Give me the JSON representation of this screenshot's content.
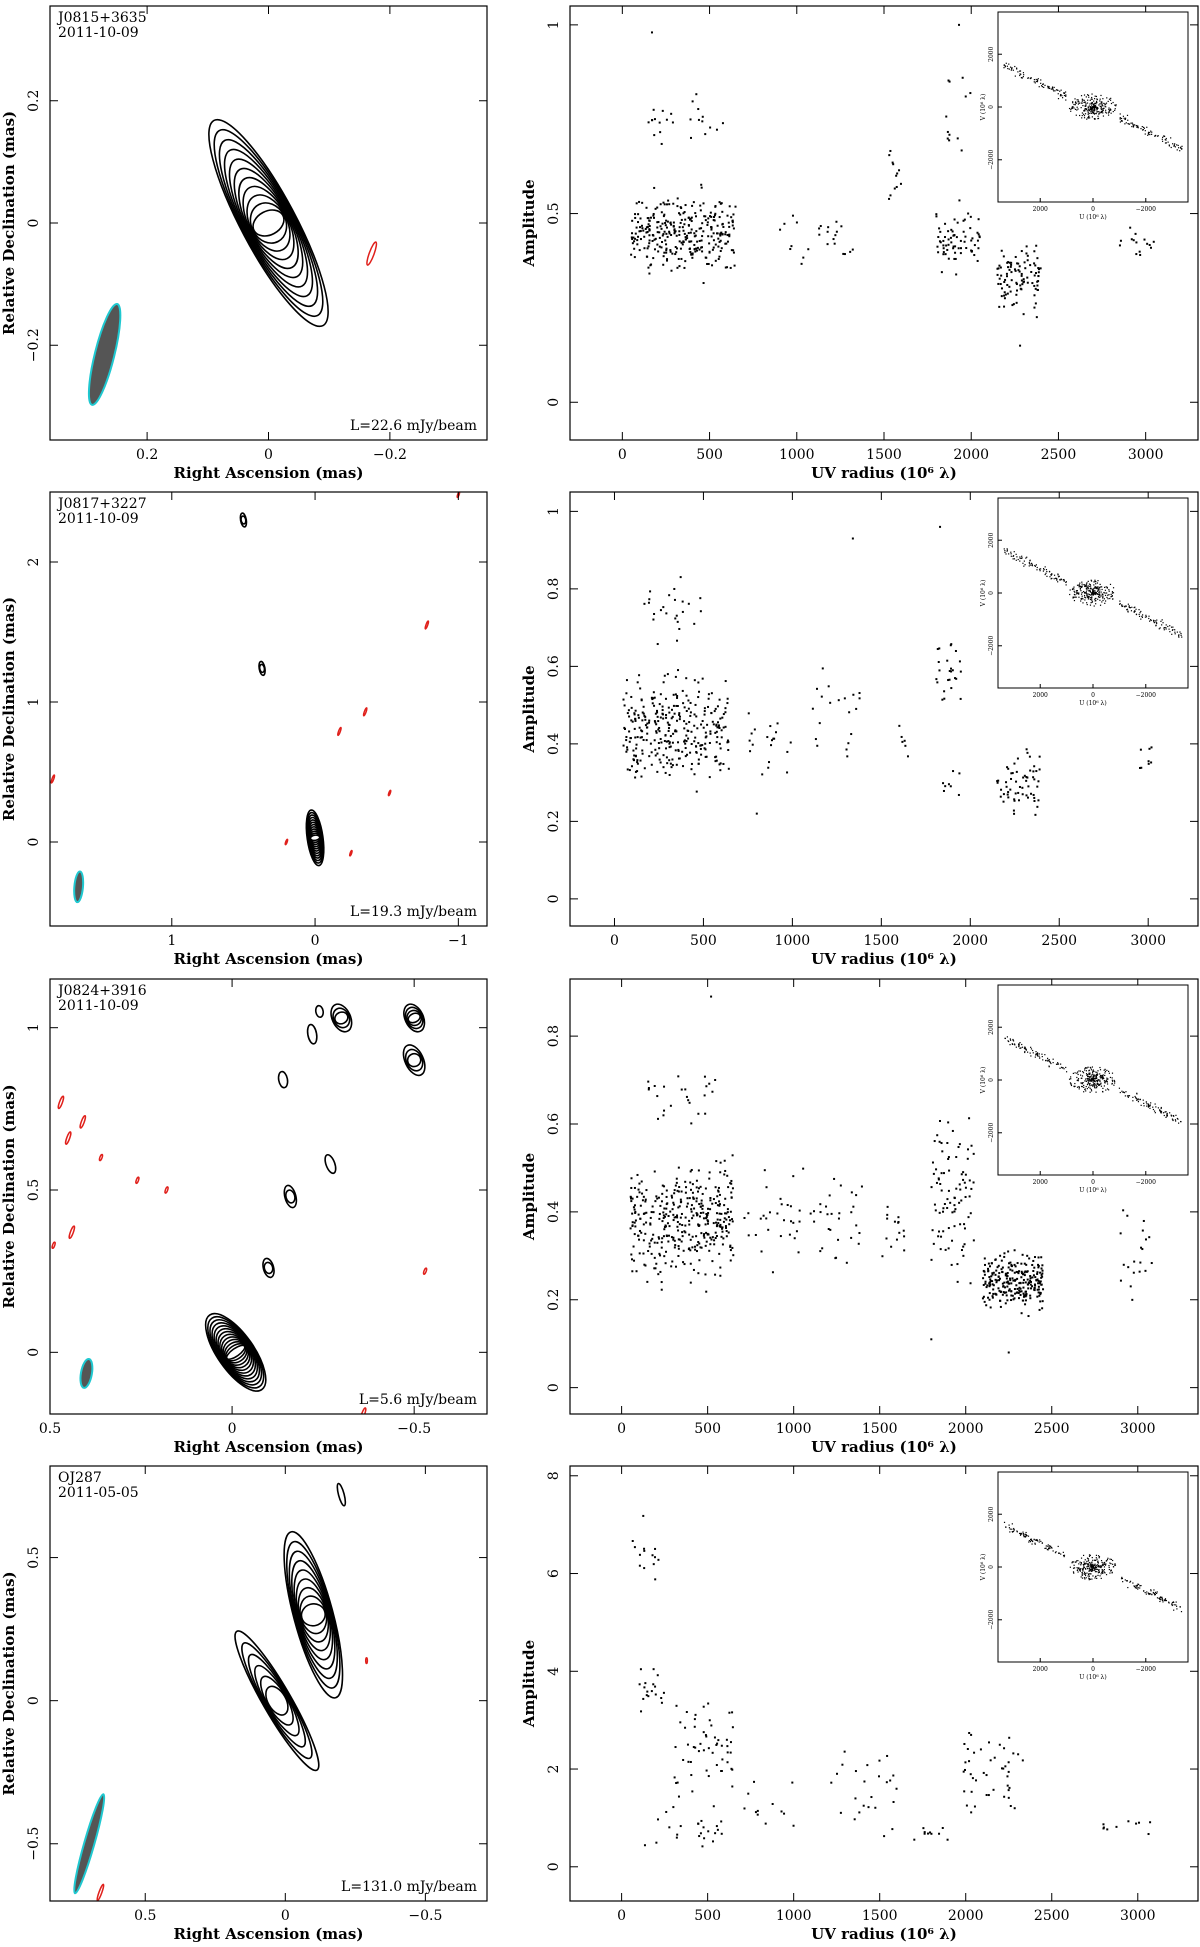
{
  "chart_data": [
    {
      "type": "contour",
      "source": "J0815+3635",
      "date": "2011-10-09",
      "xlabel": "Right Ascension  (mas)",
      "ylabel": "Relative Declination  (mas)",
      "xlim": [
        0.36,
        -0.36
      ],
      "ylim": [
        -0.355,
        0.355
      ],
      "xticks": [
        0.2,
        0,
        -0.2
      ],
      "xtick_labels": [
        "0.2",
        "0",
        "−0.2"
      ],
      "yticks": [
        -0.2,
        0,
        0.2
      ],
      "ytick_labels": [
        "−0.2",
        "0",
        "0.2"
      ],
      "level_label": "L=22.6 mJy/beam",
      "beam": {
        "x": 0.27,
        "y": -0.215,
        "major": 0.085,
        "minor": 0.016,
        "pa_deg": 14
      },
      "components": [
        {
          "x": 0.0,
          "y": 0.0,
          "major": 0.19,
          "minor": 0.045,
          "pa_deg": 152,
          "levels": 11
        }
      ],
      "negative_contours": [
        {
          "x": -0.17,
          "y": -0.05,
          "major": 0.02,
          "minor": 0.004,
          "pa_deg": 20
        }
      ]
    },
    {
      "type": "scatter",
      "xlabel": "UV radius  (10⁶ λ)",
      "ylabel": "Amplitude",
      "xlim": [
        -300,
        3300
      ],
      "ylim": [
        -0.1,
        1.05
      ],
      "xticks": [
        0,
        500,
        1000,
        1500,
        2000,
        2500,
        3000
      ],
      "yticks": [
        0,
        0.5,
        1
      ],
      "ytick_labels": [
        "0",
        "0.5",
        "1"
      ],
      "clusters": [
        {
          "x": [
            50,
            650
          ],
          "y": [
            0.3,
            0.6
          ],
          "n": 320
        },
        {
          "x": [
            150,
            600
          ],
          "y": [
            0.65,
            0.85
          ],
          "n": 25
        },
        {
          "x": [
            850,
            1350
          ],
          "y": [
            0.32,
            0.55
          ],
          "n": 25
        },
        {
          "x": [
            1500,
            1600
          ],
          "y": [
            0.45,
            0.72
          ],
          "n": 12
        },
        {
          "x": [
            1800,
            2050
          ],
          "y": [
            0.3,
            0.55
          ],
          "n": 70
        },
        {
          "x": [
            1850,
            2000
          ],
          "y": [
            0.6,
            0.95
          ],
          "n": 12
        },
        {
          "x": [
            2150,
            2400
          ],
          "y": [
            0.2,
            0.45
          ],
          "n": 100
        },
        {
          "x": [
            2850,
            3050
          ],
          "y": [
            0.35,
            0.48
          ],
          "n": 15
        }
      ],
      "outliers": [
        {
          "x": 170,
          "y": 0.98
        },
        {
          "x": 1930,
          "y": 1.0
        },
        {
          "x": 2280,
          "y": 0.15
        }
      ],
      "inset": {
        "xlabel": "U (10⁶ λ)",
        "ylabel": "V (10⁶ λ)",
        "xticks": [
          2000,
          0,
          -2000
        ],
        "yticks": [
          2000,
          0,
          -2000
        ]
      }
    },
    {
      "type": "contour",
      "source": "J0817+3227",
      "date": "2011-10-09",
      "xlabel": "Right Ascension  (mas)",
      "ylabel": "Relative Declination  (mas)",
      "xlim": [
        1.85,
        -1.2
      ],
      "ylim": [
        -0.6,
        2.5
      ],
      "xticks": [
        1,
        0,
        -1
      ],
      "xtick_labels": [
        "1",
        "0",
        "−1"
      ],
      "yticks": [
        0,
        1,
        2
      ],
      "ytick_labels": [
        "0",
        "1",
        "2"
      ],
      "level_label": "L=19.3 mJy/beam",
      "beam": {
        "x": 1.65,
        "y": -0.32,
        "major": 0.11,
        "minor": 0.03,
        "pa_deg": 5
      },
      "components": [
        {
          "x": 0.0,
          "y": 0.03,
          "major": 0.2,
          "minor": 0.055,
          "pa_deg": 172,
          "levels": 12
        },
        {
          "x": 0.5,
          "y": 2.3,
          "major": 0.05,
          "minor": 0.02,
          "pa_deg": 170,
          "levels": 2
        },
        {
          "x": 0.37,
          "y": 1.24,
          "major": 0.05,
          "minor": 0.02,
          "pa_deg": 170,
          "levels": 2
        }
      ],
      "negative_contours": [
        {
          "x": -0.35,
          "y": 0.93,
          "major": 0.03,
          "minor": 0.006,
          "pa_deg": 20
        },
        {
          "x": -0.17,
          "y": 0.79,
          "major": 0.03,
          "minor": 0.006,
          "pa_deg": 20
        },
        {
          "x": -0.78,
          "y": 1.55,
          "major": 0.03,
          "minor": 0.006,
          "pa_deg": 20
        },
        {
          "x": -0.52,
          "y": 0.35,
          "major": 0.02,
          "minor": 0.005,
          "pa_deg": 20
        },
        {
          "x": -0.25,
          "y": -0.08,
          "major": 0.02,
          "minor": 0.005,
          "pa_deg": 20
        },
        {
          "x": 0.2,
          "y": 0.0,
          "major": 0.02,
          "minor": 0.005,
          "pa_deg": 20
        },
        {
          "x": 1.83,
          "y": 0.45,
          "major": 0.03,
          "minor": 0.006,
          "pa_deg": 20
        },
        {
          "x": -1.0,
          "y": 2.48,
          "major": 0.02,
          "minor": 0.005,
          "pa_deg": 20
        }
      ]
    },
    {
      "type": "scatter",
      "xlabel": "UV radius  (10⁶ λ)",
      "ylabel": "Amplitude",
      "xlim": [
        -250,
        3280
      ],
      "ylim": [
        -0.07,
        1.05
      ],
      "xticks": [
        0,
        500,
        1000,
        1500,
        2000,
        2500,
        3000
      ],
      "yticks": [
        0,
        0.2,
        0.4,
        0.6,
        0.8,
        1
      ],
      "ytick_labels": [
        "0",
        "0.2",
        "0.4",
        "0.6",
        "0.8",
        "1"
      ],
      "clusters": [
        {
          "x": [
            50,
            650
          ],
          "y": [
            0.25,
            0.62
          ],
          "n": 320
        },
        {
          "x": [
            150,
            550
          ],
          "y": [
            0.65,
            0.85
          ],
          "n": 25
        },
        {
          "x": [
            750,
            1000
          ],
          "y": [
            0.3,
            0.5
          ],
          "n": 20
        },
        {
          "x": [
            1100,
            1400
          ],
          "y": [
            0.3,
            0.7
          ],
          "n": 20
        },
        {
          "x": [
            1600,
            1650
          ],
          "y": [
            0.33,
            0.48
          ],
          "n": 6
        },
        {
          "x": [
            1800,
            1950
          ],
          "y": [
            0.4,
            0.75
          ],
          "n": 25
        },
        {
          "x": [
            1800,
            1950
          ],
          "y": [
            0.2,
            0.4
          ],
          "n": 8
        },
        {
          "x": [
            2150,
            2400
          ],
          "y": [
            0.18,
            0.42
          ],
          "n": 60
        },
        {
          "x": [
            2950,
            3050
          ],
          "y": [
            0.3,
            0.45
          ],
          "n": 8
        }
      ],
      "outliers": [
        {
          "x": 1340,
          "y": 0.93
        },
        {
          "x": 1830,
          "y": 0.96
        },
        {
          "x": 800,
          "y": 0.22
        }
      ],
      "inset": {
        "xlabel": "U (10⁶ λ)",
        "ylabel": "V (10⁶ λ)",
        "xticks": [
          2000,
          0,
          -2000
        ],
        "yticks": [
          2000,
          0,
          -2000
        ]
      }
    },
    {
      "type": "contour",
      "source": "J0824+3916",
      "date": "2011-10-09",
      "xlabel": "Right Ascension  (mas)",
      "ylabel": "Relative Declination  (mas)",
      "xlim": [
        0.5,
        -0.7
      ],
      "ylim": [
        -0.19,
        1.15
      ],
      "xticks": [
        0.5,
        0,
        -0.5
      ],
      "xtick_labels": [
        "0.5",
        "0",
        "−0.5"
      ],
      "yticks": [
        0,
        0.5,
        1
      ],
      "ytick_labels": [
        "0",
        "0.5",
        "1"
      ],
      "level_label": "L=5.6 mJy/beam",
      "beam": {
        "x": 0.4,
        "y": -0.065,
        "major": 0.045,
        "minor": 0.015,
        "pa_deg": 10
      },
      "components": [
        {
          "x": -0.01,
          "y": 0.0,
          "major": 0.14,
          "minor": 0.05,
          "pa_deg": 145,
          "levels": 13
        },
        {
          "x": -0.5,
          "y": 1.03,
          "major": 0.045,
          "minor": 0.025,
          "pa_deg": 155,
          "levels": 4
        },
        {
          "x": -0.5,
          "y": 0.9,
          "major": 0.05,
          "minor": 0.025,
          "pa_deg": 155,
          "levels": 3
        },
        {
          "x": -0.3,
          "y": 1.03,
          "major": 0.045,
          "minor": 0.025,
          "pa_deg": 155,
          "levels": 3
        },
        {
          "x": -0.16,
          "y": 0.48,
          "major": 0.035,
          "minor": 0.015,
          "pa_deg": 165,
          "levels": 2
        },
        {
          "x": -0.1,
          "y": 0.26,
          "major": 0.03,
          "minor": 0.014,
          "pa_deg": 165,
          "levels": 2
        },
        {
          "x": -0.27,
          "y": 0.58,
          "major": 0.03,
          "minor": 0.012,
          "pa_deg": 160,
          "levels": 1
        },
        {
          "x": -0.22,
          "y": 0.98,
          "major": 0.03,
          "minor": 0.012,
          "pa_deg": 170,
          "levels": 1
        },
        {
          "x": -0.14,
          "y": 0.84,
          "major": 0.025,
          "minor": 0.012,
          "pa_deg": 170,
          "levels": 1
        },
        {
          "x": -0.24,
          "y": 1.05,
          "major": 0.018,
          "minor": 0.01,
          "pa_deg": 170,
          "levels": 1
        }
      ],
      "negative_contours": [
        {
          "x": 0.47,
          "y": 0.77,
          "major": 0.02,
          "minor": 0.004,
          "pa_deg": 20
        },
        {
          "x": 0.45,
          "y": 0.66,
          "major": 0.02,
          "minor": 0.004,
          "pa_deg": 20
        },
        {
          "x": 0.41,
          "y": 0.71,
          "major": 0.02,
          "minor": 0.004,
          "pa_deg": 20
        },
        {
          "x": 0.36,
          "y": 0.6,
          "major": 0.01,
          "minor": 0.003,
          "pa_deg": 20
        },
        {
          "x": 0.26,
          "y": 0.53,
          "major": 0.01,
          "minor": 0.003,
          "pa_deg": 20
        },
        {
          "x": 0.18,
          "y": 0.5,
          "major": 0.01,
          "minor": 0.003,
          "pa_deg": 20
        },
        {
          "x": 0.44,
          "y": 0.37,
          "major": 0.02,
          "minor": 0.004,
          "pa_deg": 20
        },
        {
          "x": 0.49,
          "y": 0.33,
          "major": 0.01,
          "minor": 0.003,
          "pa_deg": 20
        },
        {
          "x": -0.53,
          "y": 0.25,
          "major": 0.01,
          "minor": 0.003,
          "pa_deg": 20
        },
        {
          "x": -0.36,
          "y": -0.19,
          "major": 0.02,
          "minor": 0.004,
          "pa_deg": 20
        }
      ]
    },
    {
      "type": "scatter",
      "xlabel": "UV radius  (10⁶ λ)",
      "ylabel": "Amplitude",
      "xlim": [
        -300,
        3350
      ],
      "ylim": [
        -0.06,
        0.93
      ],
      "xticks": [
        0,
        500,
        1000,
        1500,
        2000,
        2500,
        3000
      ],
      "yticks": [
        0,
        0.2,
        0.4,
        0.6,
        0.8
      ],
      "ytick_labels": [
        "0",
        "0.2",
        "0.4",
        "0.6",
        "0.8"
      ],
      "clusters": [
        {
          "x": [
            50,
            650
          ],
          "y": [
            0.2,
            0.55
          ],
          "n": 380
        },
        {
          "x": [
            150,
            550
          ],
          "y": [
            0.55,
            0.77
          ],
          "n": 25
        },
        {
          "x": [
            700,
            1400
          ],
          "y": [
            0.22,
            0.55
          ],
          "n": 60
        },
        {
          "x": [
            1500,
            1650
          ],
          "y": [
            0.25,
            0.5
          ],
          "n": 15
        },
        {
          "x": [
            1800,
            2050
          ],
          "y": [
            0.2,
            0.65
          ],
          "n": 90
        },
        {
          "x": [
            2100,
            2450
          ],
          "y": [
            0.15,
            0.33
          ],
          "n": 260
        },
        {
          "x": [
            2900,
            3100
          ],
          "y": [
            0.18,
            0.45
          ],
          "n": 20
        }
      ],
      "outliers": [
        {
          "x": 520,
          "y": 0.89
        },
        {
          "x": 1800,
          "y": 0.11
        },
        {
          "x": 2250,
          "y": 0.08
        }
      ],
      "inset": {
        "xlabel": "U (10⁶ λ)",
        "ylabel": "V (10⁶ λ)",
        "xticks": [
          2000,
          0,
          -2000
        ],
        "yticks": [
          2000,
          0,
          -2000
        ]
      }
    },
    {
      "type": "contour",
      "source": "OJ287",
      "date": "2011-05-05",
      "xlabel": "Right Ascension  (mas)",
      "ylabel": "Relative Declination  (mas)",
      "xlim": [
        0.84,
        -0.72
      ],
      "ylim": [
        -0.7,
        0.82
      ],
      "xticks": [
        0.5,
        0,
        -0.5
      ],
      "xtick_labels": [
        "0.5",
        "0",
        "−0.5"
      ],
      "yticks": [
        -0.5,
        0,
        0.5
      ],
      "ytick_labels": [
        "−0.5",
        "0",
        "0.5"
      ],
      "level_label": "L=131.0 mJy/beam",
      "beam": {
        "x": 0.7,
        "y": -0.5,
        "major": 0.18,
        "minor": 0.018,
        "pa_deg": 16
      },
      "components": [
        {
          "x": -0.1,
          "y": 0.3,
          "major": 0.3,
          "minor": 0.07,
          "pa_deg": 165,
          "levels": 9
        },
        {
          "x": 0.03,
          "y": 0.0,
          "major": 0.28,
          "minor": 0.05,
          "pa_deg": 150,
          "levels": 6
        },
        {
          "x": -0.2,
          "y": 0.72,
          "major": 0.04,
          "minor": 0.01,
          "pa_deg": 165,
          "levels": 1
        }
      ],
      "negative_contours": [
        {
          "x": 0.66,
          "y": -0.67,
          "major": 0.03,
          "minor": 0.005,
          "pa_deg": 20
        },
        {
          "x": -0.29,
          "y": 0.14,
          "major": 0.01,
          "minor": 0.003,
          "pa_deg": 0
        }
      ]
    },
    {
      "type": "scatter",
      "xlabel": "UV radius  (10⁶ λ)",
      "ylabel": "Amplitude",
      "xlim": [
        -300,
        3350
      ],
      "ylim": [
        -0.7,
        8.2
      ],
      "xticks": [
        0,
        500,
        1000,
        1500,
        2000,
        2500,
        3000
      ],
      "yticks": [
        0,
        2,
        4,
        6,
        8
      ],
      "ytick_labels": [
        "0",
        "2",
        "4",
        "6",
        "8"
      ],
      "clusters": [
        {
          "x": [
            60,
            220
          ],
          "y": [
            5.7,
            7.4
          ],
          "n": 14
        },
        {
          "x": [
            100,
            250
          ],
          "y": [
            2.9,
            4.2
          ],
          "n": 18
        },
        {
          "x": [
            300,
            650
          ],
          "y": [
            1.0,
            3.8
          ],
          "n": 55
        },
        {
          "x": [
            50,
            650
          ],
          "y": [
            0.1,
            1.4
          ],
          "n": 25
        },
        {
          "x": [
            700,
            1000
          ],
          "y": [
            0.5,
            1.9
          ],
          "n": 12
        },
        {
          "x": [
            1200,
            1600
          ],
          "y": [
            0.05,
            2.7
          ],
          "n": 25
        },
        {
          "x": [
            1700,
            1900
          ],
          "y": [
            0.3,
            1.0
          ],
          "n": 10
        },
        {
          "x": [
            1950,
            2350
          ],
          "y": [
            0.8,
            3.0
          ],
          "n": 45
        },
        {
          "x": [
            2800,
            3100
          ],
          "y": [
            0.6,
            1.1
          ],
          "n": 10
        }
      ],
      "outliers": [],
      "inset": {
        "xlabel": "U (10⁶ λ)",
        "ylabel": "V (10⁶ λ)",
        "xticks": [
          2000,
          0,
          -2000
        ],
        "yticks": [
          2000,
          0,
          -2000
        ]
      }
    }
  ],
  "colors": {
    "contour": "#000000",
    "negative_contour": "#e0201b",
    "beam_fill": "#555555",
    "beam_edge": "#1fc8d0",
    "points": "#000000"
  }
}
